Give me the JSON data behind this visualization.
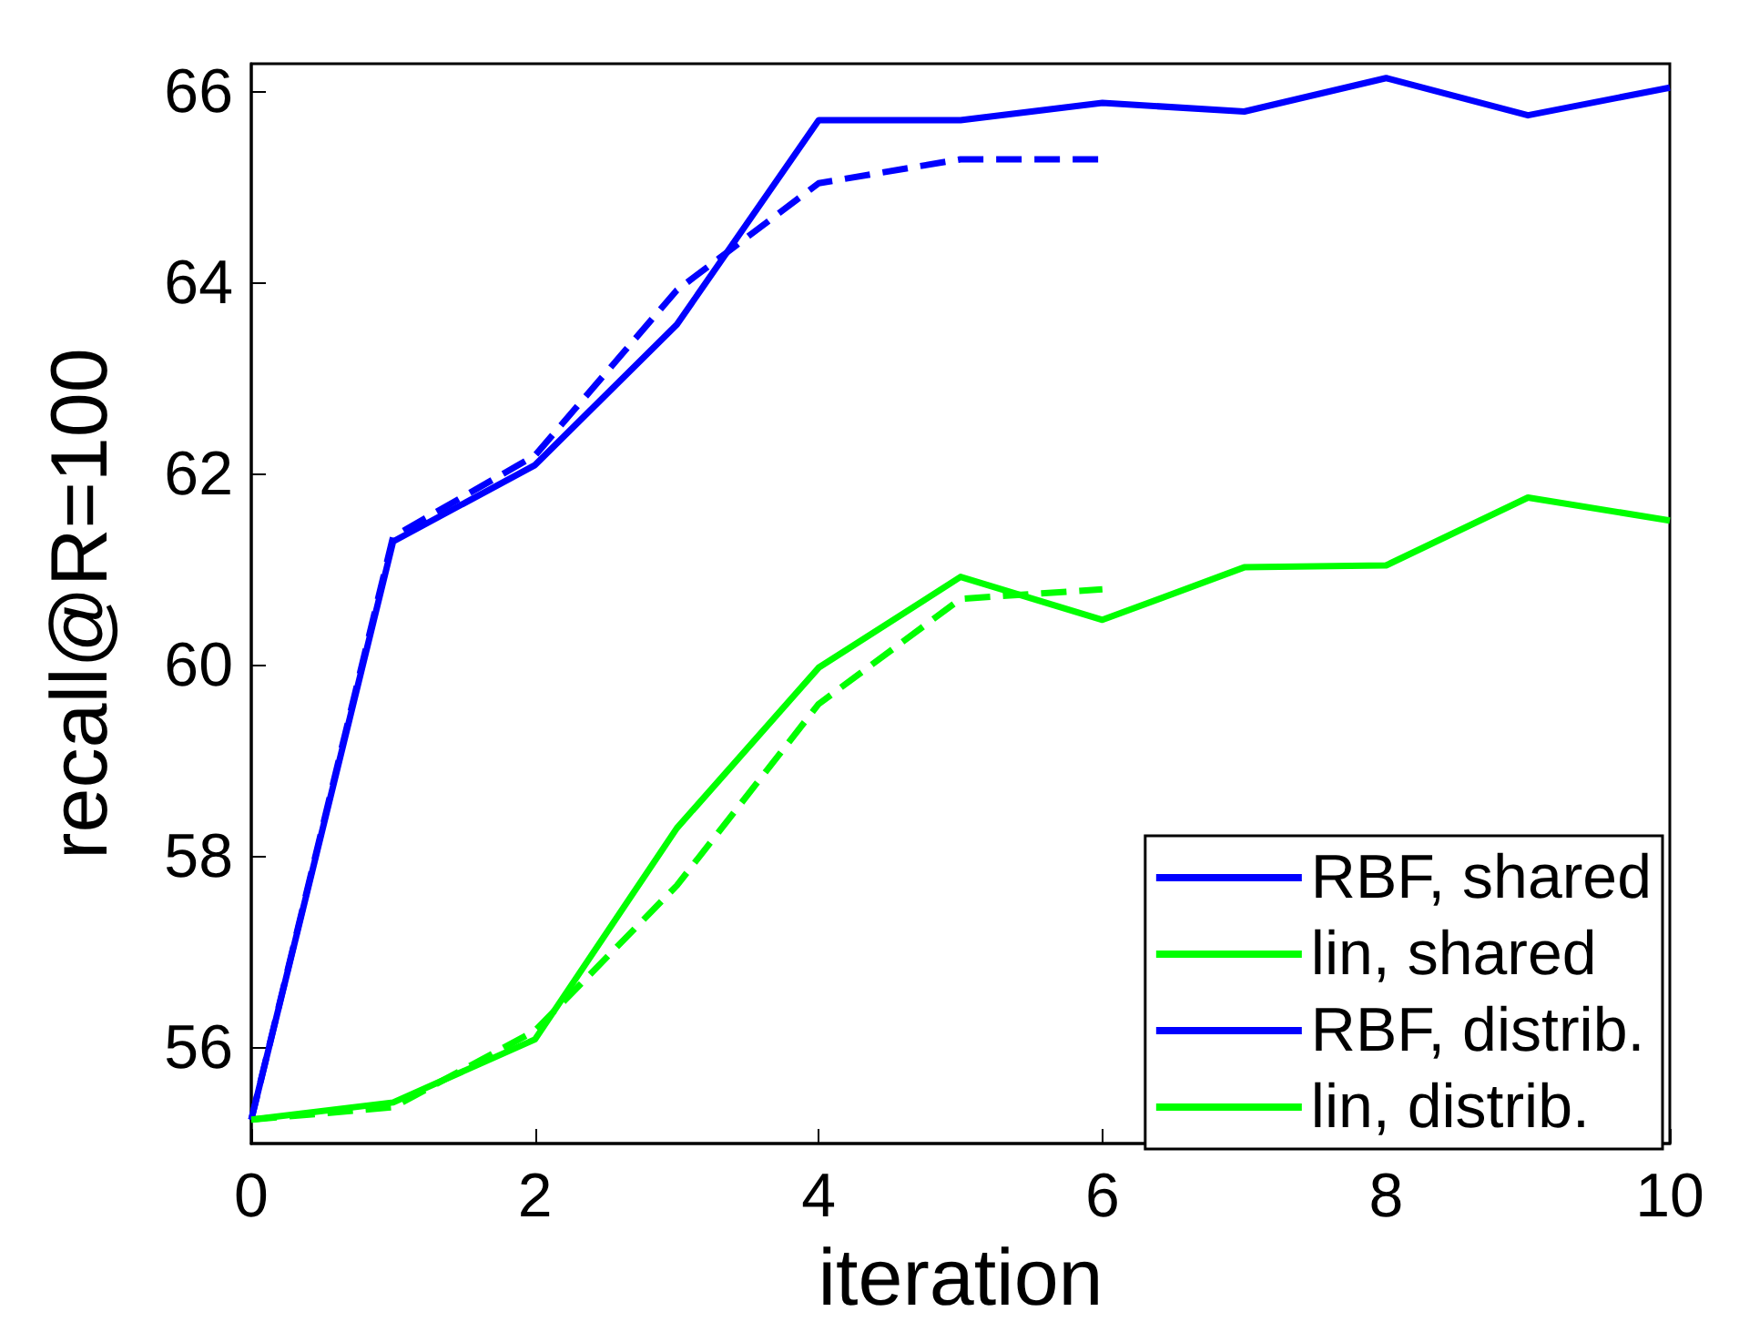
{
  "chart_data": {
    "type": "line",
    "xlabel": "iteration",
    "ylabel": "recall@R=100",
    "x": [
      0,
      1,
      2,
      3,
      4,
      5,
      6,
      7,
      8,
      9,
      10
    ],
    "xlim": [
      0,
      10
    ],
    "xticks": [
      0,
      2,
      4,
      6,
      8,
      10
    ],
    "ylim": [
      55,
      66.3
    ],
    "yticks": [
      56,
      58,
      60,
      62,
      64,
      66
    ],
    "grid": false,
    "legend": "bottom right",
    "marker": "none",
    "series": [
      {
        "name": "RBF, shared",
        "color": "#0000ff",
        "line_style": "solid",
        "values": [
          55.25,
          61.3,
          62.1,
          63.57,
          65.71,
          65.71,
          65.89,
          65.8,
          66.15,
          65.76,
          66.05
        ]
      },
      {
        "name": "lin, shared",
        "color": "#00ff00",
        "line_style": "solid",
        "values": [
          55.25,
          55.43,
          56.09,
          58.3,
          59.98,
          60.93,
          60.48,
          61.03,
          61.05,
          61.76,
          61.52
        ]
      },
      {
        "name": "RBF, distrib.",
        "color": "#0000ff",
        "line_style": "dashed",
        "values": [
          55.25,
          61.35,
          62.2,
          63.93,
          65.05,
          65.3,
          65.3,
          null,
          null,
          null,
          null
        ]
      },
      {
        "name": "lin, distrib.",
        "color": "#00ff00",
        "line_style": "dashed",
        "values": [
          55.25,
          55.38,
          56.18,
          57.7,
          59.6,
          60.7,
          60.8,
          null,
          null,
          null,
          null
        ]
      }
    ]
  }
}
